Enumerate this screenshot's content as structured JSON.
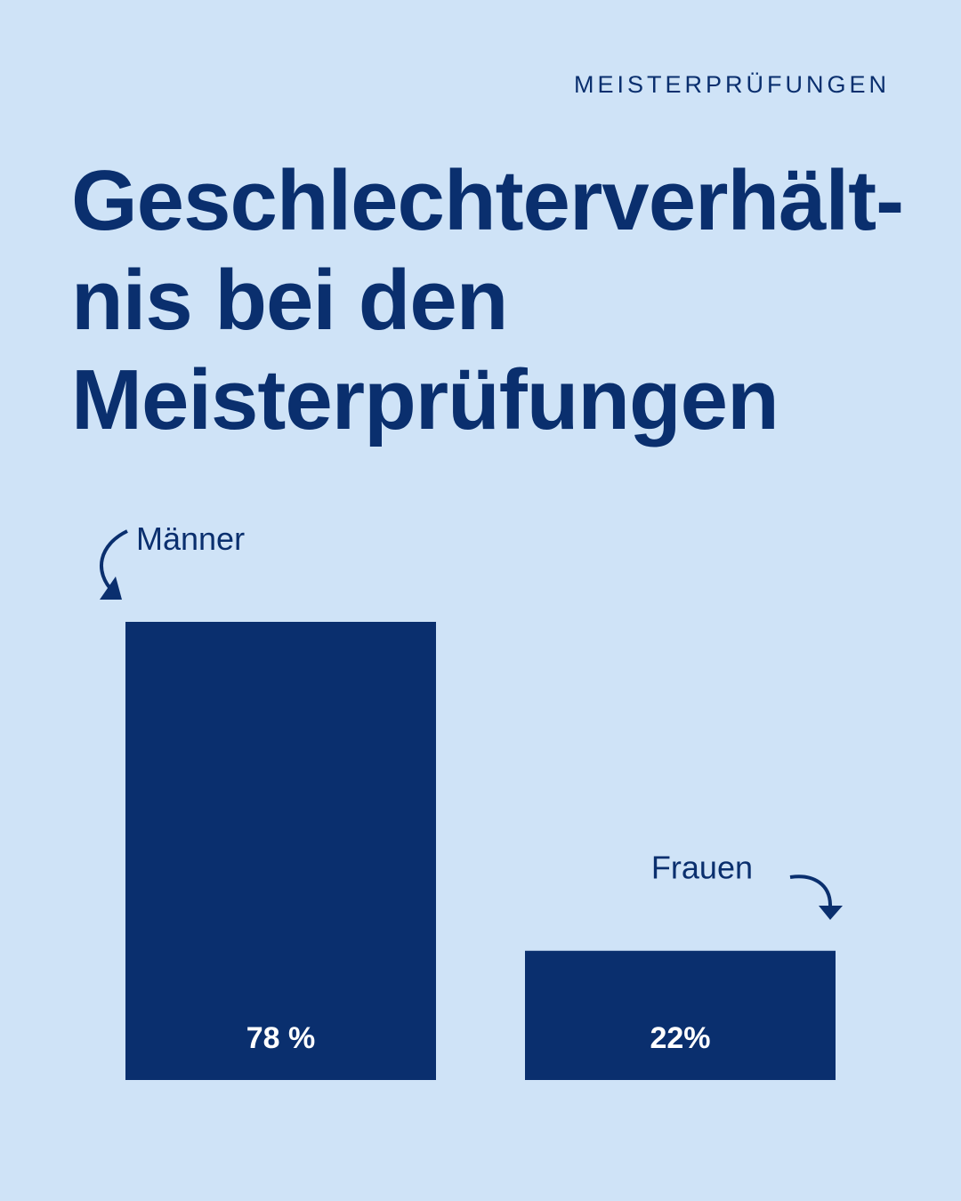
{
  "header": {
    "kicker": "MEISTERPRÜFUNGEN",
    "title_lines": [
      "Geschlechterverhält-",
      "nis bei den",
      "Meisterprüfungen"
    ]
  },
  "colors": {
    "background": "#cfe3f7",
    "bar": "#0a2f6e",
    "text": "#0a2f6e",
    "value_text": "#ffffff"
  },
  "chart_data": {
    "type": "bar",
    "title": "Geschlechterverhältnis bei den Meisterprüfungen",
    "categories": [
      "Männer",
      "Frauen"
    ],
    "values": [
      78,
      22
    ],
    "value_labels": [
      "78 %",
      "22%"
    ],
    "unit": "%",
    "ylim": [
      0,
      78
    ],
    "grid": false,
    "axes_visible": false
  }
}
